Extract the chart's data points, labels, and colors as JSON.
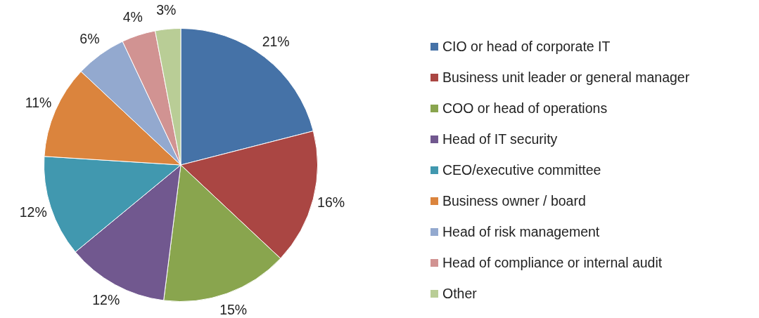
{
  "chart_data": {
    "type": "pie",
    "categories": [
      "CIO or head of corporate IT",
      "Business unit leader or general manager",
      "COO or head of operations",
      "Head of IT security",
      "CEO/executive committee",
      "Business owner / board",
      "Head of risk management",
      "Head of compliance or internal audit",
      "Other"
    ],
    "values": [
      21,
      16,
      15,
      12,
      12,
      11,
      6,
      4,
      3
    ],
    "value_labels": [
      "21%",
      "16%",
      "15%",
      "12%",
      "12%",
      "11%",
      "6%",
      "4%",
      "3%"
    ],
    "colors": [
      "#4572a7",
      "#aa4643",
      "#89a54e",
      "#71588f",
      "#4198af",
      "#db843d",
      "#93a9cf",
      "#d19392",
      "#b9cd96"
    ],
    "legend": "right"
  }
}
